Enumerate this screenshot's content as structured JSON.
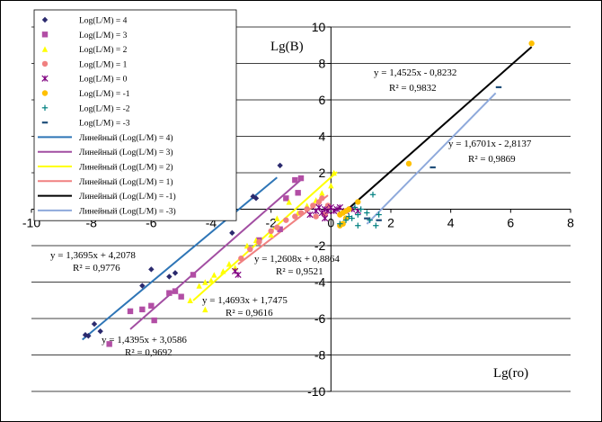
{
  "chart_data": {
    "type": "scatter",
    "title": "",
    "xlabel": "Lg(ro)",
    "ylabel": "Lg(B)",
    "xlim": [
      -10,
      8
    ],
    "ylim": [
      -10,
      10
    ],
    "x_ticks": [
      -10,
      -8,
      -6,
      -4,
      -2,
      0,
      2,
      4,
      6,
      8
    ],
    "y_ticks": [
      -10,
      -8,
      -6,
      -4,
      -2,
      2,
      4,
      6,
      8,
      10
    ],
    "grid": "horizontal",
    "legend_position": "top-left",
    "series": [
      {
        "name": "Log(L/M) = 4",
        "color": "#2b2a6e",
        "marker": "diamond",
        "points": [
          [
            -8.2,
            -6.9
          ],
          [
            -8.1,
            -6.95
          ],
          [
            -7.9,
            -6.3
          ],
          [
            -7.7,
            -6.7
          ],
          [
            -6.3,
            -4.2
          ],
          [
            -6.0,
            -3.3
          ],
          [
            -5.4,
            -3.7
          ],
          [
            -5.2,
            -3.5
          ],
          [
            -3.3,
            -1.3
          ],
          [
            -2.6,
            0.7
          ],
          [
            -2.5,
            0.6
          ],
          [
            -1.7,
            2.4
          ]
        ]
      },
      {
        "name": "Log(L/M) = 3",
        "color": "#b24ea5",
        "marker": "square",
        "points": [
          [
            -7.4,
            -7.4
          ],
          [
            -6.7,
            -5.6
          ],
          [
            -6.3,
            -5.5
          ],
          [
            -6.0,
            -5.3
          ],
          [
            -5.9,
            -6.1
          ],
          [
            -5.4,
            -4.6
          ],
          [
            -5.2,
            -4.5
          ],
          [
            -5.0,
            -4.8
          ],
          [
            -4.6,
            -3.6
          ],
          [
            -2.4,
            -1.7
          ],
          [
            -1.5,
            0.6
          ],
          [
            -1.2,
            1.6
          ],
          [
            -1.0,
            1.7
          ],
          [
            -1.1,
            0.9
          ],
          [
            -1.7,
            -1.1
          ]
        ]
      },
      {
        "name": "Log(L/M) = 2",
        "color": "#ffff00",
        "marker": "triangle",
        "points": [
          [
            -4.7,
            -5.0
          ],
          [
            -4.2,
            -5.5
          ],
          [
            -4.4,
            -4.2
          ],
          [
            -4.2,
            -4.0
          ],
          [
            -4.0,
            -3.9
          ],
          [
            -3.9,
            -3.6
          ],
          [
            -3.6,
            -3.4
          ],
          [
            -3.4,
            -3.0
          ],
          [
            -3.2,
            -3.2
          ],
          [
            -2.8,
            -2.0
          ],
          [
            -2.5,
            -1.7
          ],
          [
            -2.0,
            -1.4
          ],
          [
            -1.8,
            -0.5
          ],
          [
            -1.4,
            0.4
          ],
          [
            -1.1,
            -0.2
          ],
          [
            -0.8,
            0.2
          ],
          [
            -0.5,
            0.5
          ],
          [
            -0.3,
            0.9
          ],
          [
            0.0,
            1.3
          ],
          [
            0.1,
            2.0
          ]
        ]
      },
      {
        "name": "Log(L/M) = 1",
        "color": "#f08080",
        "marker": "circle",
        "points": [
          [
            -3.0,
            -2.7
          ],
          [
            -2.7,
            -2.2
          ],
          [
            -2.4,
            -1.8
          ],
          [
            -2.0,
            -1.2
          ],
          [
            -1.8,
            -1.0
          ],
          [
            -1.5,
            -0.6
          ],
          [
            -1.2,
            -0.4
          ],
          [
            -1.0,
            -0.2
          ],
          [
            -0.8,
            0.0
          ],
          [
            -0.6,
            0.2
          ],
          [
            -0.4,
            0.4
          ],
          [
            -0.3,
            0.6
          ],
          [
            -0.5,
            -0.4
          ],
          [
            -0.2,
            -0.3
          ],
          [
            -0.1,
            0.2
          ]
        ]
      },
      {
        "name": "Log(L/M) = 0",
        "color": "#800080",
        "marker": "star",
        "points": [
          [
            -3.2,
            -3.4
          ],
          [
            -3.1,
            -3.6
          ],
          [
            -0.7,
            -0.3
          ],
          [
            -0.5,
            -0.1
          ],
          [
            -0.4,
            0.1
          ],
          [
            -0.3,
            -0.2
          ],
          [
            -0.2,
            0.0
          ],
          [
            -0.1,
            -0.1
          ],
          [
            0.0,
            0.1
          ],
          [
            0.1,
            -0.1
          ],
          [
            0.2,
            0.0
          ],
          [
            0.3,
            0.1
          ],
          [
            0.5,
            -0.1
          ],
          [
            0.7,
            0.0
          ],
          [
            0.9,
            -0.1
          ],
          [
            -0.2,
            -0.5
          ]
        ]
      },
      {
        "name": "Log(L/M) = -1",
        "color": "#ffc000",
        "marker": "circle",
        "points": [
          [
            0.3,
            -0.3
          ],
          [
            0.4,
            -0.2
          ],
          [
            0.5,
            -0.1
          ],
          [
            0.6,
            0.0
          ],
          [
            0.4,
            -0.8
          ],
          [
            0.5,
            -0.5
          ],
          [
            0.3,
            -0.9
          ],
          [
            0.9,
            0.4
          ],
          [
            2.6,
            2.5
          ],
          [
            6.7,
            9.1
          ]
        ]
      },
      {
        "name": "Log(L/M) = -2",
        "color": "#008080",
        "marker": "plus",
        "points": [
          [
            0.3,
            -0.8
          ],
          [
            0.5,
            -0.6
          ],
          [
            0.6,
            -0.4
          ],
          [
            0.7,
            -0.5
          ],
          [
            0.8,
            0.1
          ],
          [
            0.9,
            -0.3
          ],
          [
            1.0,
            0.0
          ],
          [
            1.2,
            -0.2
          ],
          [
            1.3,
            -0.6
          ],
          [
            1.5,
            -0.9
          ],
          [
            1.6,
            -0.3
          ],
          [
            1.4,
            0.8
          ],
          [
            0.9,
            -0.9
          ]
        ]
      },
      {
        "name": "Log(L/M) = -3",
        "color": "#1f4e79",
        "marker": "dash",
        "points": [
          [
            1.2,
            -0.5
          ],
          [
            1.6,
            -0.6
          ],
          [
            3.4,
            2.3
          ],
          [
            5.6,
            6.7
          ]
        ]
      }
    ],
    "trendlines": [
      {
        "name": "Линейный (Log(L/M) = 4)",
        "color": "#2e75b6",
        "slope": 1.3695,
        "intercept": 4.2078,
        "x_range": [
          -8.3,
          -1.8
        ],
        "equation": "y = 1,3695x + 4,2078",
        "r2": "R² = 0,9776"
      },
      {
        "name": "Линейный (Log(L/M) = 3)",
        "color": "#a24ea2",
        "slope": 1.4395,
        "intercept": 3.0586,
        "x_range": [
          -6.7,
          -1.0
        ],
        "equation": "y = 1,4395x + 3,0586",
        "r2": "R² = 0,9692"
      },
      {
        "name": "Линейный (Log(L/M) = 2)",
        "color": "#ffff00",
        "slope": 1.4693,
        "intercept": 1.7475,
        "x_range": [
          -4.6,
          0.2
        ],
        "equation": "y = 1,4693x + 1,7475",
        "r2": "R² = 0,9616"
      },
      {
        "name": "Линейный (Log(L/M) = 1)",
        "color": "#f08080",
        "slope": 1.2608,
        "intercept": 0.8864,
        "x_range": [
          -3.1,
          -0.1
        ],
        "equation": "y = 1,2608x + 0,8864",
        "r2": "R² = 0,9521"
      },
      {
        "name": "Линейный (Log(L/M) = -1)",
        "color": "#000000",
        "slope": 1.4525,
        "intercept": -0.8232,
        "x_range": [
          0.3,
          6.7
        ],
        "equation": "y = 1,4525x - 0,8232",
        "r2": "R² = 0,9832"
      },
      {
        "name": "Линейный (Log(L/M) = -3)",
        "color": "#8ea9db",
        "slope": 1.6701,
        "intercept": -2.8137,
        "x_range": [
          1.2,
          5.5
        ],
        "equation": "y = 1,6701x - 2,8137",
        "r2": "R² = 0,9869"
      }
    ]
  }
}
